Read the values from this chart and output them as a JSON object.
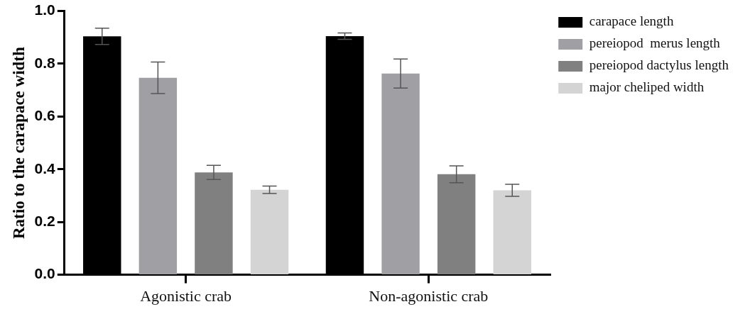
{
  "chart_data": {
    "type": "bar",
    "ylabel": "Ratio to the carapace width",
    "categories": [
      "Agonistic crab",
      "Non-agonistic crab"
    ],
    "series": [
      {
        "name": "carapace length",
        "color": "#000000",
        "values": [
          0.904,
          0.905
        ],
        "errors": [
          0.031,
          0.012
        ]
      },
      {
        "name": "pereiopod  merus length",
        "color": "#a0a0a4",
        "values": [
          0.747,
          0.763
        ],
        "errors": [
          0.06,
          0.055
        ]
      },
      {
        "name": "pereiopod dactylus length",
        "color": "#808080",
        "values": [
          0.388,
          0.381
        ],
        "errors": [
          0.027,
          0.032
        ]
      },
      {
        "name": "major cheliped width",
        "color": "#d4d4d4",
        "values": [
          0.322,
          0.32
        ],
        "errors": [
          0.014,
          0.023
        ]
      }
    ],
    "ylim": [
      0,
      1
    ],
    "yticks": [
      {
        "value": 0,
        "label": "0.0"
      },
      {
        "value": 0.2,
        "label": "0.2"
      },
      {
        "value": 0.4,
        "label": "0.4"
      },
      {
        "value": 0.6,
        "label": "0.6"
      },
      {
        "value": 0.8,
        "label": "0.8"
      },
      {
        "value": 1,
        "label": "1.0"
      }
    ],
    "grid": false,
    "legend": "right"
  }
}
